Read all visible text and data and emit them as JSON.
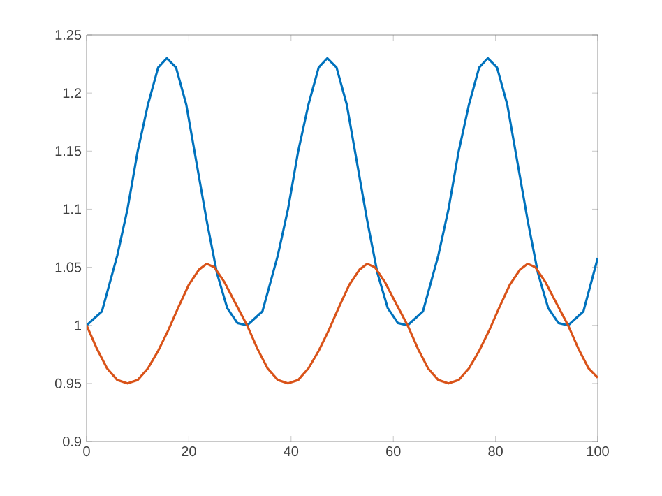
{
  "chart_data": {
    "type": "line",
    "xlim": [
      0,
      100
    ],
    "ylim": [
      0.9,
      1.25
    ],
    "xticks": [
      0,
      20,
      40,
      60,
      80,
      100
    ],
    "yticks": [
      0.9,
      0.95,
      1,
      1.05,
      1.1,
      1.15,
      1.2,
      1.25
    ],
    "marker": "none",
    "line_style": "solid",
    "series": [
      {
        "color": "#0072bd",
        "x": [
          0,
          3,
          6,
          8,
          10,
          12,
          14,
          15.7,
          17.5,
          19.5,
          21.5,
          23.5,
          25.5,
          27.5,
          29.5,
          31.4,
          34.4,
          37.4,
          39.4,
          41.4,
          43.4,
          45.4,
          47.1,
          48.9,
          50.9,
          52.9,
          54.9,
          56.9,
          58.9,
          60.9,
          62.8,
          65.8,
          68.8,
          70.8,
          72.8,
          74.8,
          76.8,
          78.5,
          80.3,
          82.3,
          84.3,
          86.3,
          88.3,
          90.3,
          92.3,
          94.2,
          97.2,
          100
        ],
        "values": [
          1.0,
          1.012,
          1.06,
          1.1,
          1.15,
          1.19,
          1.222,
          1.23,
          1.222,
          1.19,
          1.14,
          1.09,
          1.045,
          1.015,
          1.002,
          1.0,
          1.012,
          1.06,
          1.1,
          1.15,
          1.19,
          1.222,
          1.23,
          1.222,
          1.19,
          1.14,
          1.09,
          1.045,
          1.015,
          1.002,
          1.0,
          1.012,
          1.06,
          1.1,
          1.15,
          1.19,
          1.222,
          1.23,
          1.222,
          1.19,
          1.14,
          1.09,
          1.045,
          1.015,
          1.002,
          1.0,
          1.012,
          1.058
        ]
      },
      {
        "color": "#d95319",
        "x": [
          0,
          2,
          4,
          6,
          8,
          10,
          12,
          14,
          16,
          18,
          20,
          22,
          23.5,
          25,
          27,
          29,
          31.4,
          33.4,
          35.4,
          37.4,
          39.4,
          41.4,
          43.4,
          45.4,
          47.4,
          49.4,
          51.4,
          53.4,
          54.9,
          56.4,
          58.4,
          60.4,
          62.8,
          64.8,
          66.8,
          68.8,
          70.8,
          72.8,
          74.8,
          76.8,
          78.8,
          80.8,
          82.8,
          84.8,
          86.3,
          87.8,
          89.8,
          91.8,
          94.2,
          96.2,
          98.2,
          100
        ],
        "values": [
          1.0,
          0.98,
          0.963,
          0.953,
          0.95,
          0.953,
          0.963,
          0.978,
          0.996,
          1.016,
          1.035,
          1.048,
          1.053,
          1.05,
          1.037,
          1.02,
          1.0,
          0.98,
          0.963,
          0.953,
          0.95,
          0.953,
          0.963,
          0.978,
          0.996,
          1.016,
          1.035,
          1.048,
          1.053,
          1.05,
          1.037,
          1.02,
          1.0,
          0.98,
          0.963,
          0.953,
          0.95,
          0.953,
          0.963,
          0.978,
          0.996,
          1.016,
          1.035,
          1.048,
          1.053,
          1.05,
          1.037,
          1.02,
          1.0,
          0.98,
          0.963,
          0.955
        ]
      }
    ]
  }
}
